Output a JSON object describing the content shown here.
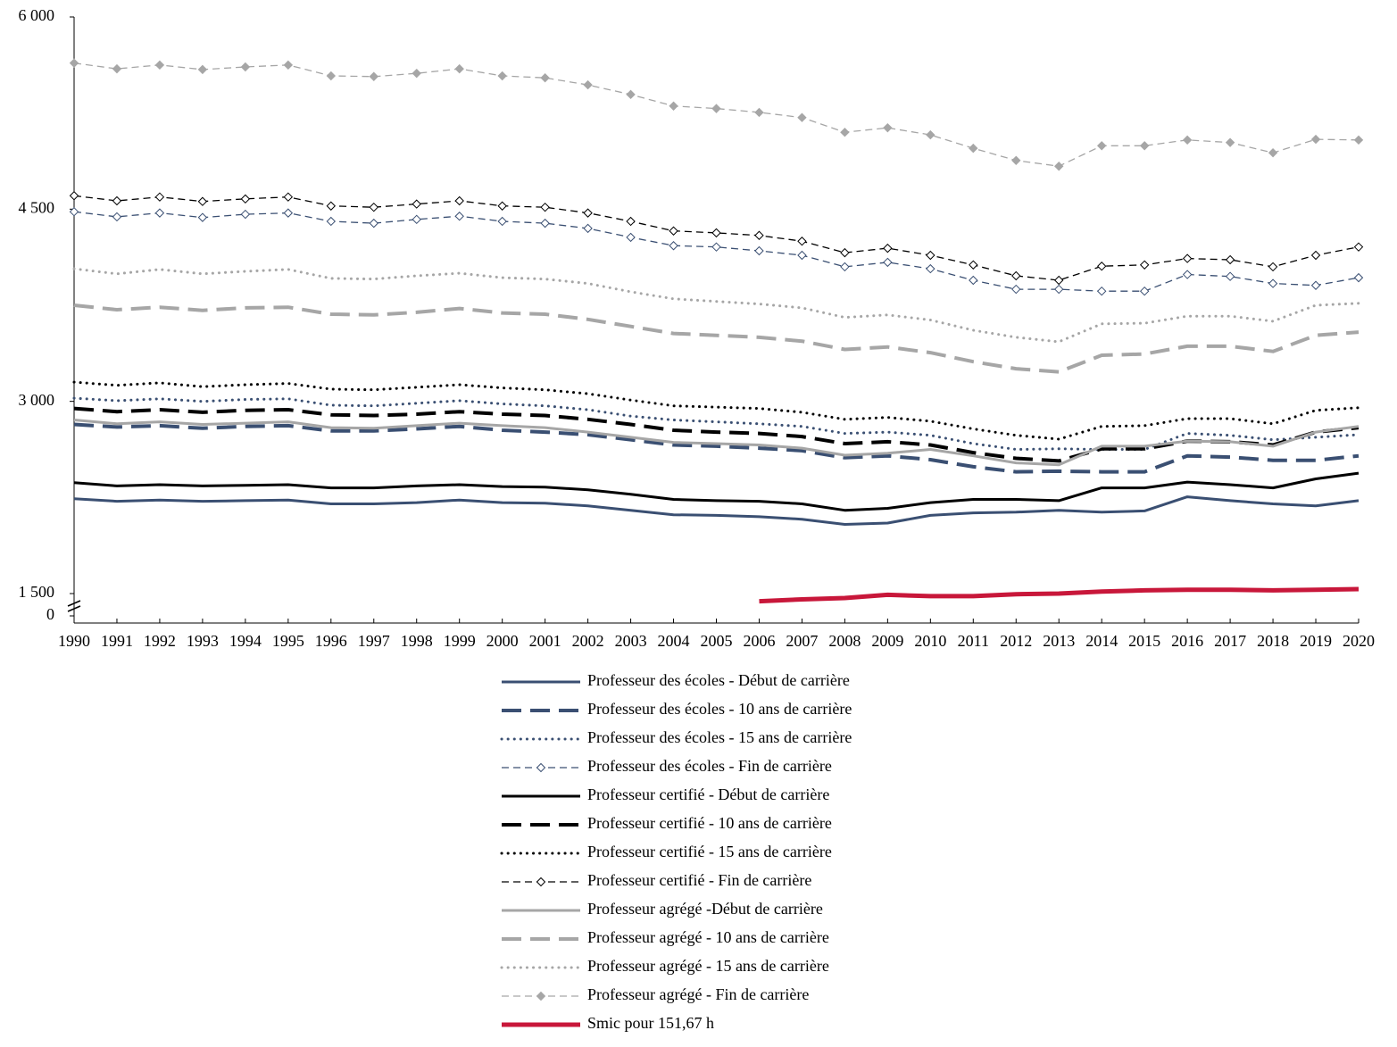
{
  "chart_data": {
    "type": "line",
    "x": [
      1990,
      1991,
      1992,
      1993,
      1994,
      1995,
      1996,
      1997,
      1998,
      1999,
      2000,
      2001,
      2002,
      2003,
      2004,
      2005,
      2006,
      2007,
      2008,
      2009,
      2010,
      2011,
      2012,
      2013,
      2014,
      2015,
      2016,
      2017,
      2018,
      2019,
      2020
    ],
    "xlim": [
      1990,
      2020
    ],
    "ylim": [
      1500,
      6000
    ],
    "yticks": [
      {
        "value": 1500,
        "label": "1 500"
      },
      {
        "value": 3000,
        "label": "3 000"
      },
      {
        "value": 4500,
        "label": "4 500"
      },
      {
        "value": 6000,
        "label": "6 000"
      }
    ],
    "ybreak": {
      "value": 0,
      "label": "0"
    },
    "grid": false,
    "legend": "bottom",
    "series": [
      {
        "name": "Professeur des écoles - Début de carrière",
        "color": "#3a4f72",
        "line_style": "solid",
        "marker": "none",
        "values": [
          2240,
          2220,
          2230,
          2220,
          2225,
          2230,
          2200,
          2200,
          2210,
          2230,
          2210,
          2205,
          2185,
          2150,
          2115,
          2110,
          2100,
          2080,
          2040,
          2050,
          2110,
          2130,
          2135,
          2150,
          2135,
          2145,
          2255,
          2225,
          2200,
          2185,
          2225
        ]
      },
      {
        "name": "Professeur des écoles - 10 ans de carrière",
        "color": "#3a4f72",
        "line_style": "long-dash",
        "marker": "none",
        "values": [
          2820,
          2800,
          2810,
          2790,
          2805,
          2810,
          2770,
          2770,
          2785,
          2805,
          2775,
          2760,
          2740,
          2700,
          2660,
          2650,
          2635,
          2615,
          2560,
          2575,
          2545,
          2490,
          2450,
          2455,
          2450,
          2450,
          2575,
          2565,
          2540,
          2540,
          2575
        ]
      },
      {
        "name": "Professeur des écoles - 15 ans de carrière",
        "color": "#3a4f72",
        "line_style": "dot",
        "marker": "none",
        "values": [
          3025,
          3005,
          3020,
          3000,
          3015,
          3020,
          2970,
          2965,
          2985,
          3005,
          2980,
          2965,
          2935,
          2885,
          2855,
          2840,
          2825,
          2805,
          2750,
          2760,
          2735,
          2670,
          2625,
          2630,
          2625,
          2625,
          2750,
          2735,
          2700,
          2720,
          2740
        ]
      },
      {
        "name": "Professeur des écoles - Fin de carrière",
        "color": "#3a4f72",
        "line_style": "dash",
        "marker": "diamond-open",
        "values": [
          4480,
          4440,
          4470,
          4435,
          4460,
          4470,
          4405,
          4390,
          4420,
          4445,
          4405,
          4390,
          4350,
          4280,
          4215,
          4205,
          4175,
          4140,
          4050,
          4085,
          4035,
          3945,
          3875,
          3875,
          3860,
          3860,
          3990,
          3975,
          3920,
          3905,
          3965
        ]
      },
      {
        "name": "Professeur certifié - Début de carrière",
        "color": "#000000",
        "line_style": "solid",
        "marker": "none",
        "values": [
          2365,
          2340,
          2350,
          2340,
          2345,
          2350,
          2325,
          2325,
          2340,
          2350,
          2335,
          2330,
          2310,
          2275,
          2235,
          2225,
          2220,
          2200,
          2150,
          2165,
          2210,
          2235,
          2235,
          2225,
          2325,
          2325,
          2370,
          2350,
          2325,
          2395,
          2440
        ]
      },
      {
        "name": "Professeur certifié - 10 ans de carrière",
        "color": "#000000",
        "line_style": "long-dash",
        "marker": "none",
        "values": [
          2945,
          2920,
          2935,
          2915,
          2930,
          2935,
          2895,
          2890,
          2900,
          2920,
          2900,
          2890,
          2860,
          2820,
          2775,
          2760,
          2750,
          2725,
          2670,
          2685,
          2660,
          2600,
          2555,
          2535,
          2630,
          2630,
          2690,
          2685,
          2660,
          2760,
          2795
        ]
      },
      {
        "name": "Professeur certifié - 15 ans de carrière",
        "color": "#000000",
        "line_style": "dot",
        "marker": "none",
        "values": [
          3150,
          3125,
          3145,
          3115,
          3130,
          3140,
          3095,
          3090,
          3110,
          3130,
          3105,
          3090,
          3060,
          3010,
          2965,
          2955,
          2945,
          2915,
          2860,
          2875,
          2845,
          2785,
          2735,
          2705,
          2805,
          2810,
          2865,
          2865,
          2825,
          2930,
          2950
        ]
      },
      {
        "name": "Professeur certifié - Fin de carrière",
        "color": "#000000",
        "line_style": "dash",
        "marker": "diamond-open",
        "values": [
          4605,
          4565,
          4595,
          4560,
          4580,
          4595,
          4525,
          4515,
          4540,
          4565,
          4525,
          4515,
          4470,
          4405,
          4330,
          4315,
          4295,
          4250,
          4160,
          4195,
          4140,
          4065,
          3980,
          3945,
          4055,
          4065,
          4115,
          4105,
          4050,
          4140,
          4205
        ]
      },
      {
        "name": "Professeur agrégé -Début de carrière",
        "color": "#a6a6a6",
        "line_style": "solid",
        "marker": "none",
        "values": [
          2855,
          2825,
          2840,
          2820,
          2830,
          2840,
          2795,
          2790,
          2810,
          2830,
          2810,
          2795,
          2760,
          2720,
          2680,
          2670,
          2660,
          2635,
          2580,
          2595,
          2625,
          2575,
          2520,
          2505,
          2650,
          2650,
          2690,
          2685,
          2650,
          2760,
          2805
        ]
      },
      {
        "name": "Professeur agrégé - 10 ans de carrière",
        "color": "#a6a6a6",
        "line_style": "long-dash",
        "marker": "none",
        "values": [
          3750,
          3715,
          3735,
          3710,
          3730,
          3735,
          3680,
          3675,
          3695,
          3725,
          3690,
          3680,
          3640,
          3585,
          3530,
          3515,
          3500,
          3470,
          3405,
          3425,
          3380,
          3310,
          3255,
          3230,
          3360,
          3370,
          3430,
          3430,
          3390,
          3515,
          3540
        ]
      },
      {
        "name": "Professeur agrégé - 15 ans de carrière",
        "color": "#a6a6a6",
        "line_style": "dot",
        "marker": "none",
        "values": [
          4035,
          3995,
          4030,
          3995,
          4015,
          4030,
          3960,
          3955,
          3980,
          4000,
          3965,
          3955,
          3920,
          3855,
          3800,
          3780,
          3760,
          3730,
          3655,
          3675,
          3635,
          3555,
          3500,
          3465,
          3605,
          3610,
          3665,
          3665,
          3625,
          3750,
          3765
        ]
      },
      {
        "name": "Professeur agrégé - Fin de carrière",
        "color": "#a6a6a6",
        "line_style": "dash",
        "marker": "diamond-filled",
        "values": [
          5640,
          5595,
          5625,
          5590,
          5610,
          5625,
          5540,
          5535,
          5560,
          5595,
          5540,
          5525,
          5470,
          5395,
          5305,
          5285,
          5255,
          5215,
          5100,
          5135,
          5080,
          4975,
          4880,
          4835,
          4995,
          4995,
          5040,
          5020,
          4940,
          5045,
          5040
        ]
      },
      {
        "name": "Smic pour 151,67 h",
        "color": "#c8173a",
        "line_style": "thick",
        "marker": "none",
        "values": [
          null,
          null,
          null,
          null,
          null,
          null,
          null,
          null,
          null,
          null,
          null,
          null,
          null,
          null,
          null,
          null,
          1440,
          1455,
          1465,
          1490,
          1480,
          1480,
          1495,
          1500,
          1515,
          1525,
          1530,
          1530,
          1525,
          1530,
          1535
        ]
      }
    ]
  }
}
